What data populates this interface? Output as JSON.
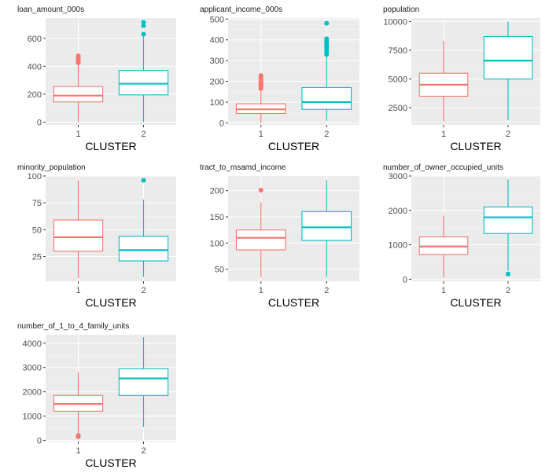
{
  "colors": {
    "panel_bg": "#ebebeb",
    "grid_major": "#ffffff",
    "cluster1": "#F8766D",
    "cluster2": "#00BFC4",
    "axis_text": "#4d4d4d",
    "tick_mark": "#333333"
  },
  "chart_data": [
    {
      "type": "boxplot",
      "title": "loan_amount_000s",
      "xlabel": "CLUSTER",
      "categories": [
        "1",
        "2"
      ],
      "yticks": [
        0,
        200,
        400,
        600
      ],
      "ylim": [
        -20,
        745
      ],
      "series": [
        {
          "category": "1",
          "min": 0,
          "q1": 145,
          "median": 190,
          "q3": 255,
          "max": 415,
          "outliers": [
            425,
            435,
            445,
            455,
            465,
            475
          ]
        },
        {
          "category": "2",
          "min": 0,
          "q1": 195,
          "median": 275,
          "q3": 370,
          "max": 615,
          "outliers": [
            630,
            690,
            715
          ]
        }
      ]
    },
    {
      "type": "boxplot",
      "title": "applicant_income_000s",
      "xlabel": "CLUSTER",
      "categories": [
        "1",
        "2"
      ],
      "yticks": [
        0,
        100,
        200,
        300,
        400,
        500
      ],
      "ylim": [
        -10,
        505
      ],
      "series": [
        {
          "category": "1",
          "min": 0,
          "q1": 45,
          "median": 65,
          "q3": 92,
          "max": 160,
          "outliers": [
            165,
            170,
            175,
            180,
            185,
            190,
            195,
            200,
            210,
            220,
            228
          ]
        },
        {
          "category": "2",
          "min": 10,
          "q1": 65,
          "median": 100,
          "q3": 170,
          "max": 320,
          "outliers": [
            330,
            345,
            355,
            365,
            375,
            385,
            395,
            405,
            480
          ]
        }
      ]
    },
    {
      "type": "boxplot",
      "title": "population",
      "xlabel": "CLUSTER",
      "categories": [
        "1",
        "2"
      ],
      "yticks": [
        2500,
        5000,
        7500,
        10000
      ],
      "yticklabels": [
        "2500",
        "5000",
        "7500",
        "10000"
      ],
      "ylim": [
        1000,
        10300
      ],
      "series": [
        {
          "category": "1",
          "min": 1300,
          "q1": 3500,
          "median": 4500,
          "q3": 5500,
          "max": 8300,
          "outliers": []
        },
        {
          "category": "2",
          "min": 1400,
          "q1": 5000,
          "median": 6600,
          "q3": 8700,
          "max": 10000,
          "outliers": []
        }
      ]
    },
    {
      "type": "boxplot",
      "title": "minority_population",
      "xlabel": "CLUSTER",
      "categories": [
        "1",
        "2"
      ],
      "yticks": [
        25,
        50,
        75,
        100
      ],
      "ylim": [
        2,
        100
      ],
      "series": [
        {
          "category": "1",
          "min": 5,
          "q1": 30,
          "median": 43,
          "q3": 59,
          "max": 96,
          "outliers": []
        },
        {
          "category": "2",
          "min": 6,
          "q1": 21,
          "median": 31,
          "q3": 44,
          "max": 78,
          "outliers": [
            96
          ]
        }
      ]
    },
    {
      "type": "boxplot",
      "title": "tract_to_msamd_income",
      "xlabel": "CLUSTER",
      "categories": [
        "1",
        "2"
      ],
      "yticks": [
        50,
        100,
        150,
        200
      ],
      "ylim": [
        27,
        228
      ],
      "series": [
        {
          "category": "1",
          "min": 35,
          "q1": 87,
          "median": 110,
          "q3": 125,
          "max": 178,
          "outliers": [
            201
          ]
        },
        {
          "category": "2",
          "min": 35,
          "q1": 105,
          "median": 130,
          "q3": 160,
          "max": 220,
          "outliers": []
        }
      ]
    },
    {
      "type": "boxplot",
      "title": "number_of_owner_occupied_units",
      "xlabel": "CLUSTER",
      "categories": [
        "1",
        "2"
      ],
      "yticks": [
        0,
        1000,
        2000,
        3000
      ],
      "ylim": [
        -60,
        3000
      ],
      "series": [
        {
          "category": "1",
          "min": 50,
          "q1": 720,
          "median": 950,
          "q3": 1230,
          "max": 1850,
          "outliers": []
        },
        {
          "category": "2",
          "min": 250,
          "q1": 1330,
          "median": 1800,
          "q3": 2100,
          "max": 2900,
          "outliers": [
            150
          ]
        }
      ]
    },
    {
      "type": "boxplot",
      "title": "number_of_1_to_4_family_units",
      "xlabel": "CLUSTER",
      "categories": [
        "1",
        "2"
      ],
      "yticks": [
        0,
        1000,
        2000,
        3000,
        4000
      ],
      "ylim": [
        -50,
        4350
      ],
      "series": [
        {
          "category": "1",
          "min": 250,
          "q1": 1200,
          "median": 1500,
          "q3": 1850,
          "max": 2800,
          "outliers": [
            150,
            200
          ]
        },
        {
          "category": "2",
          "min": 550,
          "q1": 1850,
          "median": 2550,
          "q3": 2950,
          "max": 4250,
          "outliers": []
        }
      ]
    }
  ]
}
